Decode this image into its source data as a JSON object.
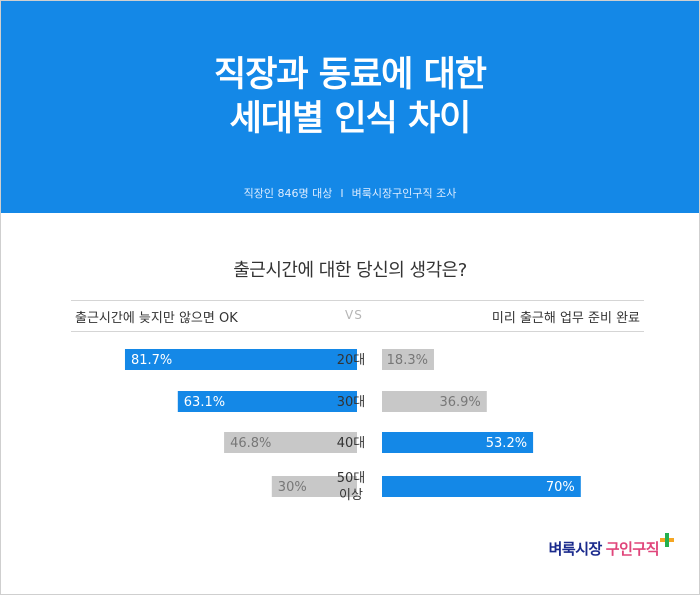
{
  "header": {
    "title_line1": "직장과 동료에 대한",
    "title_line2": "세대별 인식 차이",
    "subtitle_left": "직장인 846명 대상",
    "subtitle_sep": "I",
    "subtitle_right": "벼룩시장구인구직 조사"
  },
  "question": "출근시간에 대한 당신의 생각은?",
  "legend": {
    "left": "출근시간에 늦지만 않으면 OK",
    "vs": "VS",
    "right": "미리 출근해 업무 준비 완료"
  },
  "logo": {
    "brand": "벼룩시장",
    "service": "구인구직"
  },
  "colors": {
    "header_bg": "#1488e7",
    "bar_blue": "#1488e7",
    "bar_gray": "#c8c8c8"
  },
  "chart_data": {
    "type": "bar",
    "categories": [
      "20대",
      "30대",
      "40대",
      "50대 이상"
    ],
    "unit": "%",
    "series": [
      {
        "name": "출근시간에 늦지만 않으면 OK",
        "values": [
          81.7,
          63.1,
          46.8,
          30
        ],
        "labels": [
          "81.7%",
          "63.1%",
          "46.8%",
          "30%"
        ]
      },
      {
        "name": "미리 출근해 업무 준비 완료",
        "values": [
          18.3,
          36.9,
          53.2,
          70
        ],
        "labels": [
          "18.3%",
          "36.9%",
          "53.2%",
          "70%"
        ]
      }
    ],
    "highlight_series_by_category": [
      0,
      0,
      1,
      1
    ],
    "xlim": [
      0,
      100
    ]
  }
}
